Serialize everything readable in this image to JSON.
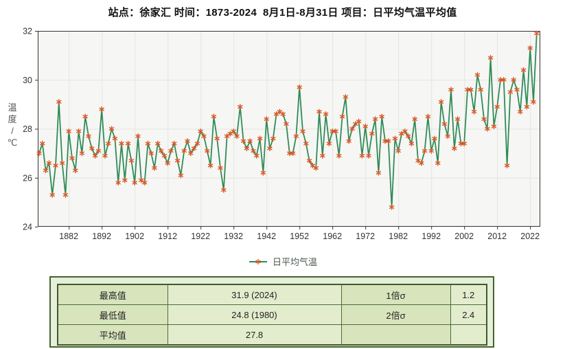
{
  "title": "站点：徐家汇 时间：1873-2024  8月1日-8月31日 项目：日平均气温平均值",
  "chart_data": {
    "type": "line",
    "title": "站点：徐家汇 时间：1873-2024 8月1日-8月31日 项目：日平均气温平均值",
    "legend": "日平均气温",
    "ylabel": "温度/℃",
    "xlabel": "",
    "x_range": [
      1873,
      2024
    ],
    "x_ticks": [
      1882,
      1892,
      1902,
      1912,
      1922,
      1932,
      1942,
      1952,
      1962,
      1972,
      1982,
      1992,
      2002,
      2012,
      2022
    ],
    "y_ticks": [
      24,
      26,
      28,
      30,
      32
    ],
    "ylim": [
      24,
      32
    ],
    "grid": true,
    "legend_position": "bottom-center",
    "line_color": "#2e8b57",
    "marker_color": "#d85a28",
    "plot_bg": "#f6f6f4",
    "grid_color": "#e4e4e0",
    "axis_color": "#333333",
    "values": [
      27.0,
      27.4,
      26.3,
      26.6,
      25.3,
      26.5,
      29.1,
      26.6,
      25.3,
      27.9,
      26.8,
      26.3,
      27.9,
      27.0,
      28.5,
      27.7,
      27.2,
      26.9,
      27.1,
      28.8,
      26.9,
      27.4,
      28.0,
      27.6,
      25.8,
      27.4,
      25.9,
      27.4,
      26.7,
      25.8,
      27.7,
      25.9,
      25.8,
      27.4,
      27.0,
      26.4,
      27.4,
      27.1,
      26.9,
      26.6,
      27.1,
      27.4,
      26.7,
      26.1,
      27.1,
      27.5,
      27.0,
      27.2,
      27.4,
      27.9,
      27.7,
      27.1,
      26.5,
      28.5,
      27.6,
      26.4,
      25.5,
      27.7,
      27.8,
      27.9,
      27.7,
      28.9,
      27.5,
      27.2,
      27.5,
      27.1,
      26.9,
      27.6,
      26.2,
      28.4,
      27.2,
      27.6,
      28.6,
      28.7,
      28.6,
      28.2,
      27.0,
      27.0,
      27.7,
      29.7,
      27.9,
      27.4,
      26.7,
      26.5,
      26.4,
      28.7,
      26.9,
      28.6,
      27.4,
      27.9,
      27.9,
      26.9,
      28.5,
      29.3,
      27.5,
      28.0,
      28.2,
      28.3,
      26.9,
      28.1,
      26.9,
      27.8,
      28.4,
      26.2,
      28.5,
      27.5,
      27.5,
      24.8,
      27.6,
      27.1,
      27.8,
      27.9,
      27.7,
      27.4,
      28.4,
      26.7,
      26.6,
      27.1,
      28.5,
      27.1,
      27.6,
      26.6,
      29.1,
      28.2,
      27.7,
      29.6,
      27.2,
      28.4,
      27.4,
      27.4,
      29.6,
      29.6,
      28.7,
      30.2,
      29.6,
      28.4,
      28.0,
      30.9,
      28.1,
      28.9,
      30.0,
      30.0,
      26.5,
      29.5,
      30.0,
      29.6,
      28.7,
      30.4,
      28.9,
      31.3,
      29.1,
      31.9
    ]
  },
  "table": {
    "rows": [
      {
        "c0": "最高值",
        "c1": "31.9 (2024)",
        "c2": "1倍σ",
        "c3": "1.2"
      },
      {
        "c0": "最低值",
        "c1": "24.8 (1980)",
        "c2": "2倍σ",
        "c3": "2.4"
      },
      {
        "c0": "平均值",
        "c1": "27.8",
        "c2": "",
        "c3": ""
      }
    ]
  }
}
